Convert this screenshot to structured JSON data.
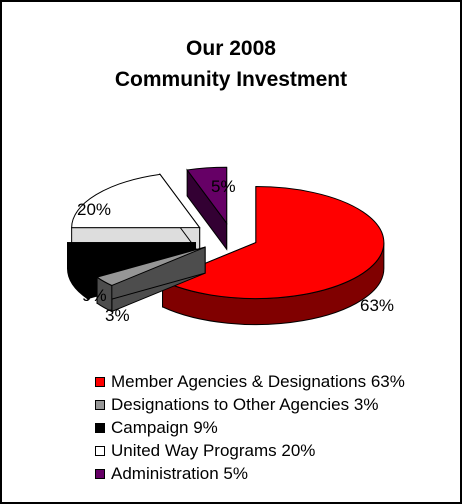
{
  "chart_data": {
    "type": "pie",
    "title_lines": [
      "Our 2008",
      "Community Investment"
    ],
    "slices": [
      {
        "name": "Member Agencies & Designations",
        "value": 63,
        "label": "63%",
        "color": "#ff0000",
        "side_color": "#800000"
      },
      {
        "name": "Designations to Other Agencies",
        "value": 3,
        "label": "3%",
        "color": "#969696",
        "side_color": "#4d4d4d"
      },
      {
        "name": "Campaign",
        "value": 9,
        "label": "9%",
        "color": "#000000",
        "side_color": "#000000"
      },
      {
        "name": "United Way Programs",
        "value": 20,
        "label": "20%",
        "color": "#ffffff",
        "side_color": "#dddddd"
      },
      {
        "name": "Administration",
        "value": 5,
        "label": "5%",
        "color": "#660066",
        "side_color": "#330033"
      }
    ],
    "legend": [
      "Member Agencies & Designations 63%",
      "Designations to Other Agencies 3%",
      "Campaign 9%",
      "United Way Programs 20%",
      "Administration 5%"
    ],
    "legend_position": "bottom",
    "style": "3d-exploded"
  }
}
